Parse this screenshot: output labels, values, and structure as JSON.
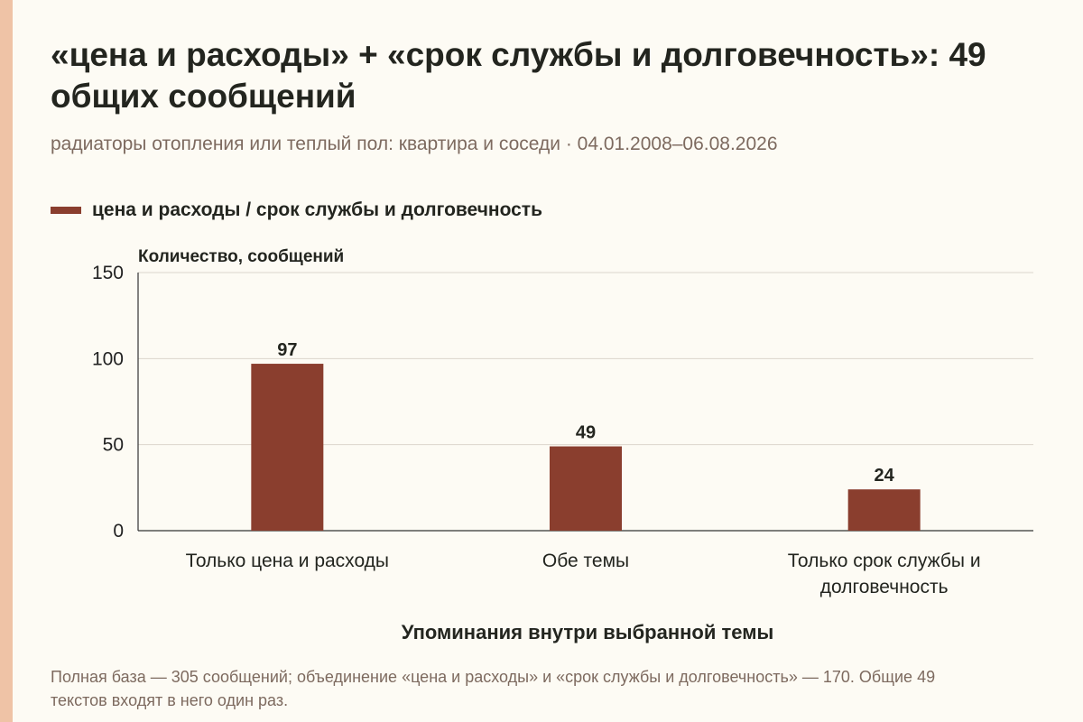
{
  "header": {
    "title": "«цена и расходы» + «срок службы и долговечность»: 49 общих сообщений",
    "subtitle": "радиаторы отопления или теплый пол: квартира и соседи · 04.01.2008–06.08.2026"
  },
  "footer": {
    "note": "Полная база — 305 сообщений; объединение «цена и расходы» и «срок службы и долговечность» — 170. Общие 49 текстов входят в него один раз."
  },
  "colors": {
    "accent_strip": "#efc3a6",
    "bar": "#8a3e2e",
    "grid": "#dcd6cc",
    "axis": "#333333"
  },
  "chart_data": {
    "type": "bar",
    "categories": [
      [
        "Только цена и расходы"
      ],
      [
        "Обе темы"
      ],
      [
        "Только срок службы и",
        "долговечность"
      ]
    ],
    "series": [
      {
        "name": "цена и расходы / срок службы и долговечность",
        "values": [
          97,
          49,
          24
        ]
      }
    ],
    "data_labels": [
      "97",
      "49",
      "24"
    ],
    "xlabel": "Упоминания внутри выбранной темы",
    "ylabel": "Количество, сообщений",
    "ylim": [
      0,
      150
    ],
    "yticks": [
      0,
      50,
      100,
      150
    ],
    "grid": true,
    "legend": "top-left"
  }
}
